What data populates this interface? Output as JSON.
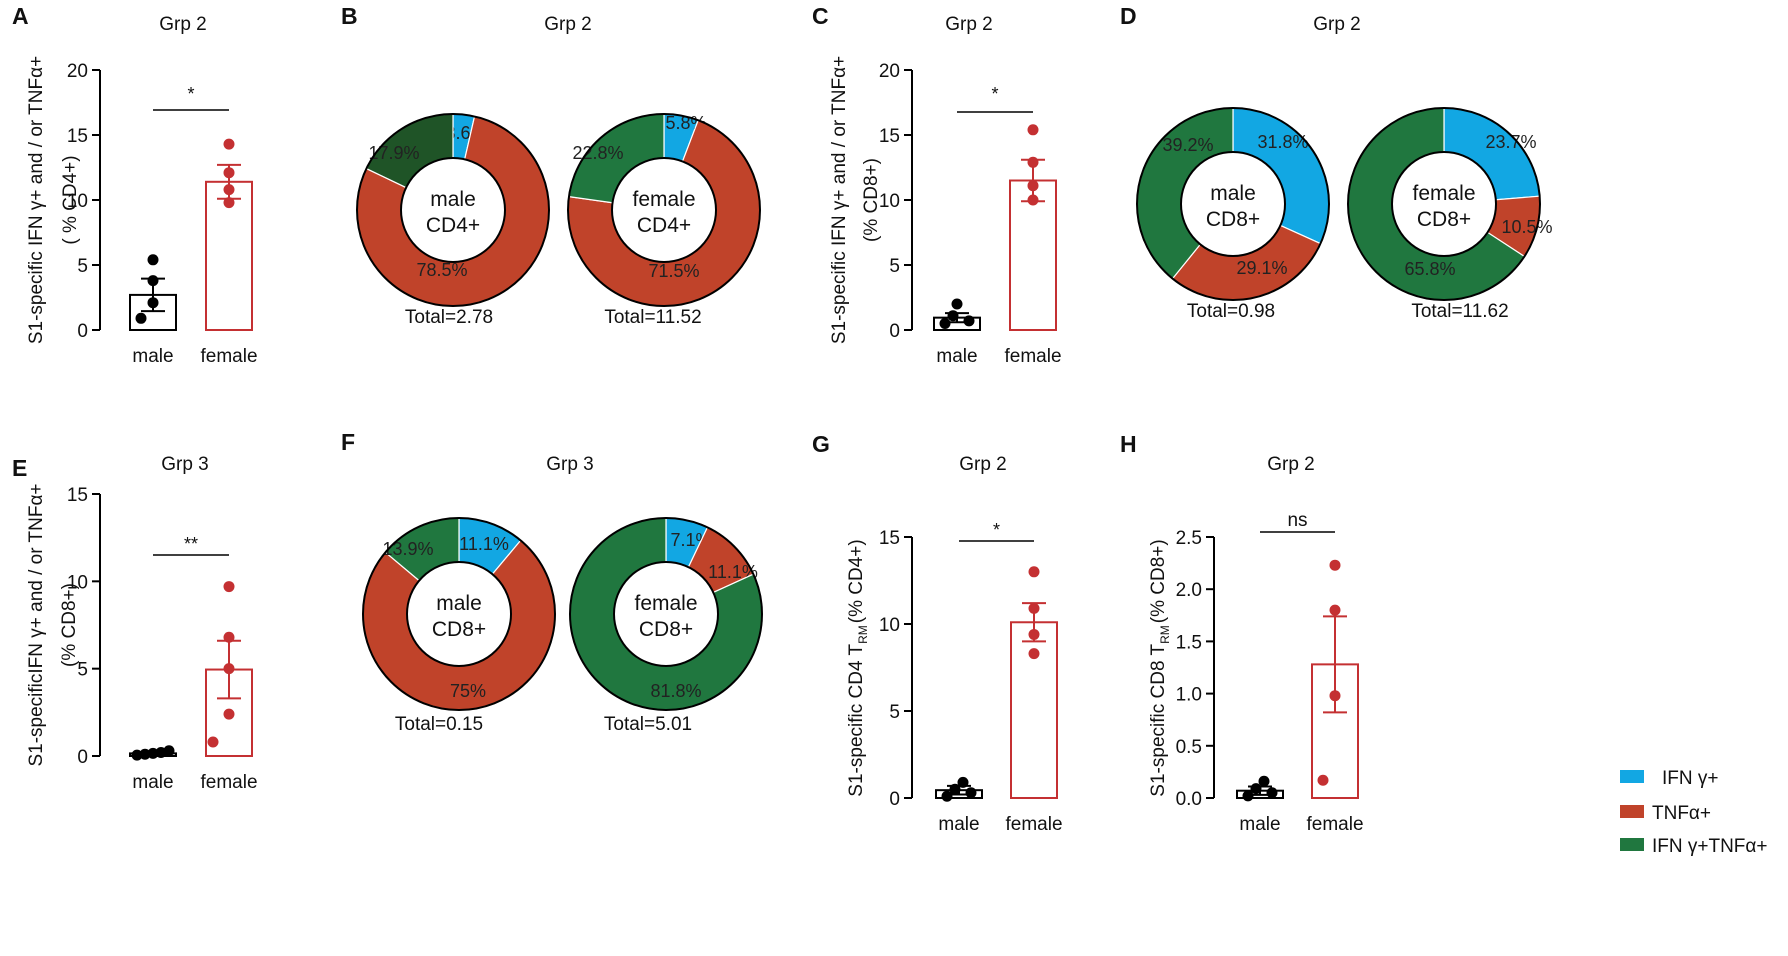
{
  "colors": {
    "ifng": "#12a7e3",
    "tnfa": "#c0432a",
    "double": "#20773f",
    "double_dark": "#1f5427",
    "female": "#c43032",
    "male": "#000000"
  },
  "legend": {
    "items": [
      {
        "label": "IFN γ+",
        "color": "#12a7e3"
      },
      {
        "label": "TNFα+",
        "color": "#c0432a"
      },
      {
        "label": "IFN γ+TNFα+",
        "color": "#20773f"
      }
    ]
  },
  "chart_data": [
    {
      "panel": "A",
      "type": "bar",
      "title": "Grp 2",
      "ylabel": "S1-specific IFN γ+ and / or TNFα+\n( % CD4+)",
      "ylim": [
        0,
        20
      ],
      "yticks": [
        0,
        5,
        10,
        15,
        20
      ],
      "categories": [
        "male",
        "female"
      ],
      "means": [
        2.7,
        11.4
      ],
      "sem": [
        1.25,
        1.3
      ],
      "points": [
        [
          0.9,
          2.1,
          3.8,
          5.4
        ],
        [
          9.8,
          10.8,
          12.1,
          14.3
        ]
      ],
      "significance": "*"
    },
    {
      "panel": "B",
      "type": "pie",
      "title": "Grp 2",
      "donuts": [
        {
          "center": [
            "male",
            "CD4+"
          ],
          "total": "Total=2.78",
          "slices": [
            {
              "name": "IFN γ+",
              "value": 3.6,
              "label": "3.6%",
              "color": "#12a7e3"
            },
            {
              "name": "TNFα+",
              "value": 78.5,
              "label": "78.5%",
              "color": "#c0432a"
            },
            {
              "name": "IFN γ+TNFα+",
              "value": 17.9,
              "label": "17.9%",
              "color": "#1f5427"
            }
          ]
        },
        {
          "center": [
            "female",
            "CD4+"
          ],
          "total": "Total=11.52",
          "slices": [
            {
              "name": "IFN γ+",
              "value": 5.8,
              "label": "5.8%",
              "color": "#12a7e3"
            },
            {
              "name": "TNFα+",
              "value": 71.5,
              "label": "71.5%",
              "color": "#c0432a"
            },
            {
              "name": "IFN γ+TNFα+",
              "value": 22.8,
              "label": "22.8%",
              "color": "#20773f"
            }
          ]
        }
      ]
    },
    {
      "panel": "C",
      "type": "bar",
      "title": "Grp 2",
      "ylabel": "S1-specific IFN γ+ and / or TNFα+\n(% CD8+)",
      "ylim": [
        0,
        20
      ],
      "yticks": [
        0,
        5,
        10,
        15,
        20
      ],
      "categories": [
        "male",
        "female"
      ],
      "means": [
        0.95,
        11.5
      ],
      "sem": [
        0.35,
        1.6
      ],
      "points": [
        [
          0.5,
          0.7,
          1.1,
          2.0
        ],
        [
          10.0,
          11.1,
          12.9,
          15.4
        ]
      ],
      "significance": "*"
    },
    {
      "panel": "D",
      "type": "pie",
      "title": "Grp 2",
      "donuts": [
        {
          "center": [
            "male",
            "CD8+"
          ],
          "total": "Total=0.98",
          "slices": [
            {
              "name": "IFN γ+",
              "value": 31.8,
              "label": "31.8%",
              "color": "#12a7e3"
            },
            {
              "name": "TNFα+",
              "value": 29.1,
              "label": "29.1%",
              "color": "#c0432a"
            },
            {
              "name": "IFN γ+TNFα+",
              "value": 39.2,
              "label": "39.2%",
              "color": "#20773f"
            }
          ]
        },
        {
          "center": [
            "female",
            "CD8+"
          ],
          "total": "Total=11.62",
          "slices": [
            {
              "name": "IFN γ+",
              "value": 23.7,
              "label": "23.7%",
              "color": "#12a7e3"
            },
            {
              "name": "TNFα+",
              "value": 10.5,
              "label": "10.5%",
              "color": "#c0432a"
            },
            {
              "name": "IFN γ+TNFα+",
              "value": 65.8,
              "label": "65.8%",
              "color": "#20773f"
            }
          ]
        }
      ]
    },
    {
      "panel": "E",
      "type": "bar",
      "title": "Grp 3",
      "ylabel": "S1-specificIFN γ+ and / or TNFα+\n(% CD8+)",
      "ylim": [
        0,
        15
      ],
      "yticks": [
        0,
        5,
        10,
        15
      ],
      "categories": [
        "male",
        "female"
      ],
      "means": [
        0.15,
        4.95
      ],
      "sem": [
        0.08,
        1.65
      ],
      "points": [
        [
          0.05,
          0.1,
          0.15,
          0.2,
          0.3
        ],
        [
          0.8,
          2.4,
          5.0,
          6.8,
          9.7
        ]
      ],
      "significance": "**"
    },
    {
      "panel": "F",
      "type": "pie",
      "title": "Grp 3",
      "donuts": [
        {
          "center": [
            "male",
            "CD8+"
          ],
          "total": "Total=0.15",
          "slices": [
            {
              "name": "IFN γ+",
              "value": 11.1,
              "label": "11.1%",
              "color": "#12a7e3"
            },
            {
              "name": "TNFα+",
              "value": 75,
              "label": "75%",
              "color": "#c0432a"
            },
            {
              "name": "IFN γ+TNFα+",
              "value": 13.9,
              "label": "13.9%",
              "color": "#20773f"
            }
          ]
        },
        {
          "center": [
            "female",
            "CD8+"
          ],
          "total": "Total=5.01",
          "slices": [
            {
              "name": "IFN γ+",
              "value": 7.1,
              "label": "7.1%",
              "color": "#12a7e3"
            },
            {
              "name": "TNFα+",
              "value": 11.1,
              "label": "11.1%",
              "color": "#c0432a"
            },
            {
              "name": "IFN γ+TNFα+",
              "value": 81.8,
              "label": "81.8%",
              "color": "#20773f"
            }
          ]
        }
      ]
    },
    {
      "panel": "G",
      "type": "bar",
      "title": "Grp 2",
      "ylabel": "S1-specific CD4 T",
      "ylabel_sub": "RM",
      "ylabel_tail": "(% CD4+)",
      "ylim": [
        0,
        15
      ],
      "yticks": [
        0,
        5,
        10,
        15
      ],
      "categories": [
        "male",
        "female"
      ],
      "means": [
        0.45,
        10.1
      ],
      "sem": [
        0.25,
        1.1
      ],
      "points": [
        [
          0.1,
          0.3,
          0.5,
          0.9
        ],
        [
          8.3,
          9.4,
          10.9,
          13.0
        ]
      ],
      "significance": "*"
    },
    {
      "panel": "H",
      "type": "bar",
      "title": "Grp 2",
      "ylabel": "S1-specific CD8 T",
      "ylabel_sub": "RM",
      "ylabel_tail": "(% CD8+)",
      "ylim": [
        0,
        2.5
      ],
      "yticks": [
        0.0,
        0.5,
        1.0,
        1.5,
        2.0,
        2.5
      ],
      "yticklabels": [
        "0.0",
        "0.5",
        "1.0",
        "1.5",
        "2.0",
        "2.5"
      ],
      "categories": [
        "male",
        "female"
      ],
      "means": [
        0.07,
        1.28
      ],
      "sem": [
        0.04,
        0.46
      ],
      "points": [
        [
          0.02,
          0.05,
          0.09,
          0.16
        ],
        [
          0.17,
          0.98,
          1.8,
          2.23
        ]
      ],
      "significance": "ns"
    }
  ]
}
